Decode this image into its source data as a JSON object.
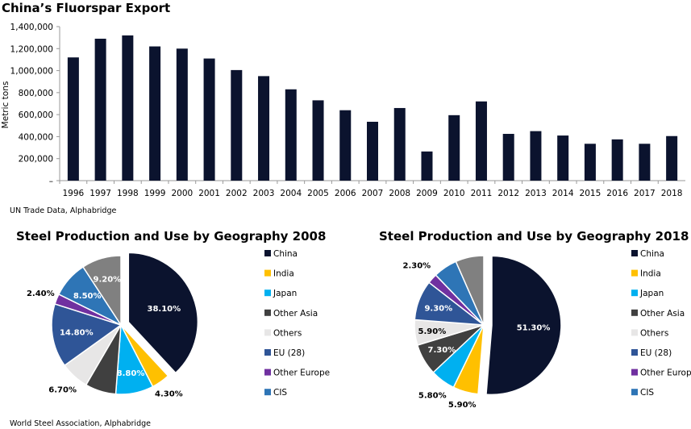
{
  "chart_data": [
    {
      "type": "bar",
      "title": "China’s Fluorspar Export",
      "ylabel": "Metric tons",
      "xlabel": "",
      "source": "UN Trade Data, Alphabridge",
      "ylim": [
        0,
        1400000
      ],
      "yticks": [
        "–",
        "200,000",
        "400,000",
        "600,000",
        "800,000",
        "1,000,000",
        "1,200,000",
        "1,400,000"
      ],
      "ytick_values": [
        0,
        200000,
        400000,
        600000,
        800000,
        1000000,
        1200000,
        1400000
      ],
      "grid": false,
      "bar_color": "#0b132e",
      "categories": [
        "1996",
        "1997",
        "1998",
        "1999",
        "2000",
        "2001",
        "2002",
        "2003",
        "2004",
        "2005",
        "2006",
        "2007",
        "2008",
        "2009",
        "2010",
        "2011",
        "2012",
        "2013",
        "2014",
        "2015",
        "2016",
        "2017",
        "2018"
      ],
      "values": [
        1120000,
        1290000,
        1320000,
        1220000,
        1200000,
        1110000,
        1005000,
        950000,
        830000,
        730000,
        640000,
        535000,
        660000,
        265000,
        595000,
        720000,
        425000,
        450000,
        410000,
        335000,
        375000,
        335000,
        405000
      ]
    },
    {
      "type": "pie",
      "title": "Steel Production and Use by Geography 2008",
      "legend": "right",
      "exploded": "China",
      "slices": [
        {
          "name": "China",
          "value": 38.1,
          "label": "38.10%",
          "color": "#0b132e"
        },
        {
          "name": "India",
          "value": 4.3,
          "label": "4.30%",
          "color": "#ffc000"
        },
        {
          "name": "Japan",
          "value": 8.8,
          "label": "8.80%",
          "color": "#00b0f0"
        },
        {
          "name": "Other Asia",
          "value": 7.2,
          "label": "",
          "color": "#404040"
        },
        {
          "name": "Others",
          "value": 6.7,
          "label": "6.70%",
          "color": "#e7e6e6"
        },
        {
          "name": "EU (28)",
          "value": 14.8,
          "label": "14.80%",
          "color": "#2f5597"
        },
        {
          "name": "Other Europe",
          "value": 2.4,
          "label": "2.40%",
          "color": "#7030a0"
        },
        {
          "name": "CIS",
          "value": 8.5,
          "label": "8.50%",
          "color": "#2e75b6"
        },
        {
          "name": "",
          "value": 9.2,
          "label": "9.20%",
          "color": "#808080"
        }
      ]
    },
    {
      "type": "pie",
      "title": "Steel Production and Use by Geography 2018",
      "legend": "right",
      "exploded": "China",
      "slices": [
        {
          "name": "China",
          "value": 51.3,
          "label": "51.30%",
          "color": "#0b132e"
        },
        {
          "name": "India",
          "value": 5.9,
          "label": "5.90%",
          "color": "#ffc000"
        },
        {
          "name": "Japan",
          "value": 5.8,
          "label": "5.80%",
          "color": "#00b0f0"
        },
        {
          "name": "Other Asia",
          "value": 7.3,
          "label": "7.30%",
          "color": "#404040"
        },
        {
          "name": "Others",
          "value": 5.9,
          "label": "5.90%",
          "color": "#e7e6e6"
        },
        {
          "name": "EU (28)",
          "value": 9.3,
          "label": "9.30%",
          "color": "#2f5597"
        },
        {
          "name": "Other Europe",
          "value": 2.3,
          "label": "2.30%",
          "color": "#7030a0"
        },
        {
          "name": "CIS",
          "value": 5.6,
          "label": "5.60%",
          "color": "#2e75b6"
        },
        {
          "name": "",
          "value": 6.6,
          "label": "",
          "color": "#808080"
        }
      ]
    }
  ],
  "pie_source": "World Steel Association, Alphabridge"
}
